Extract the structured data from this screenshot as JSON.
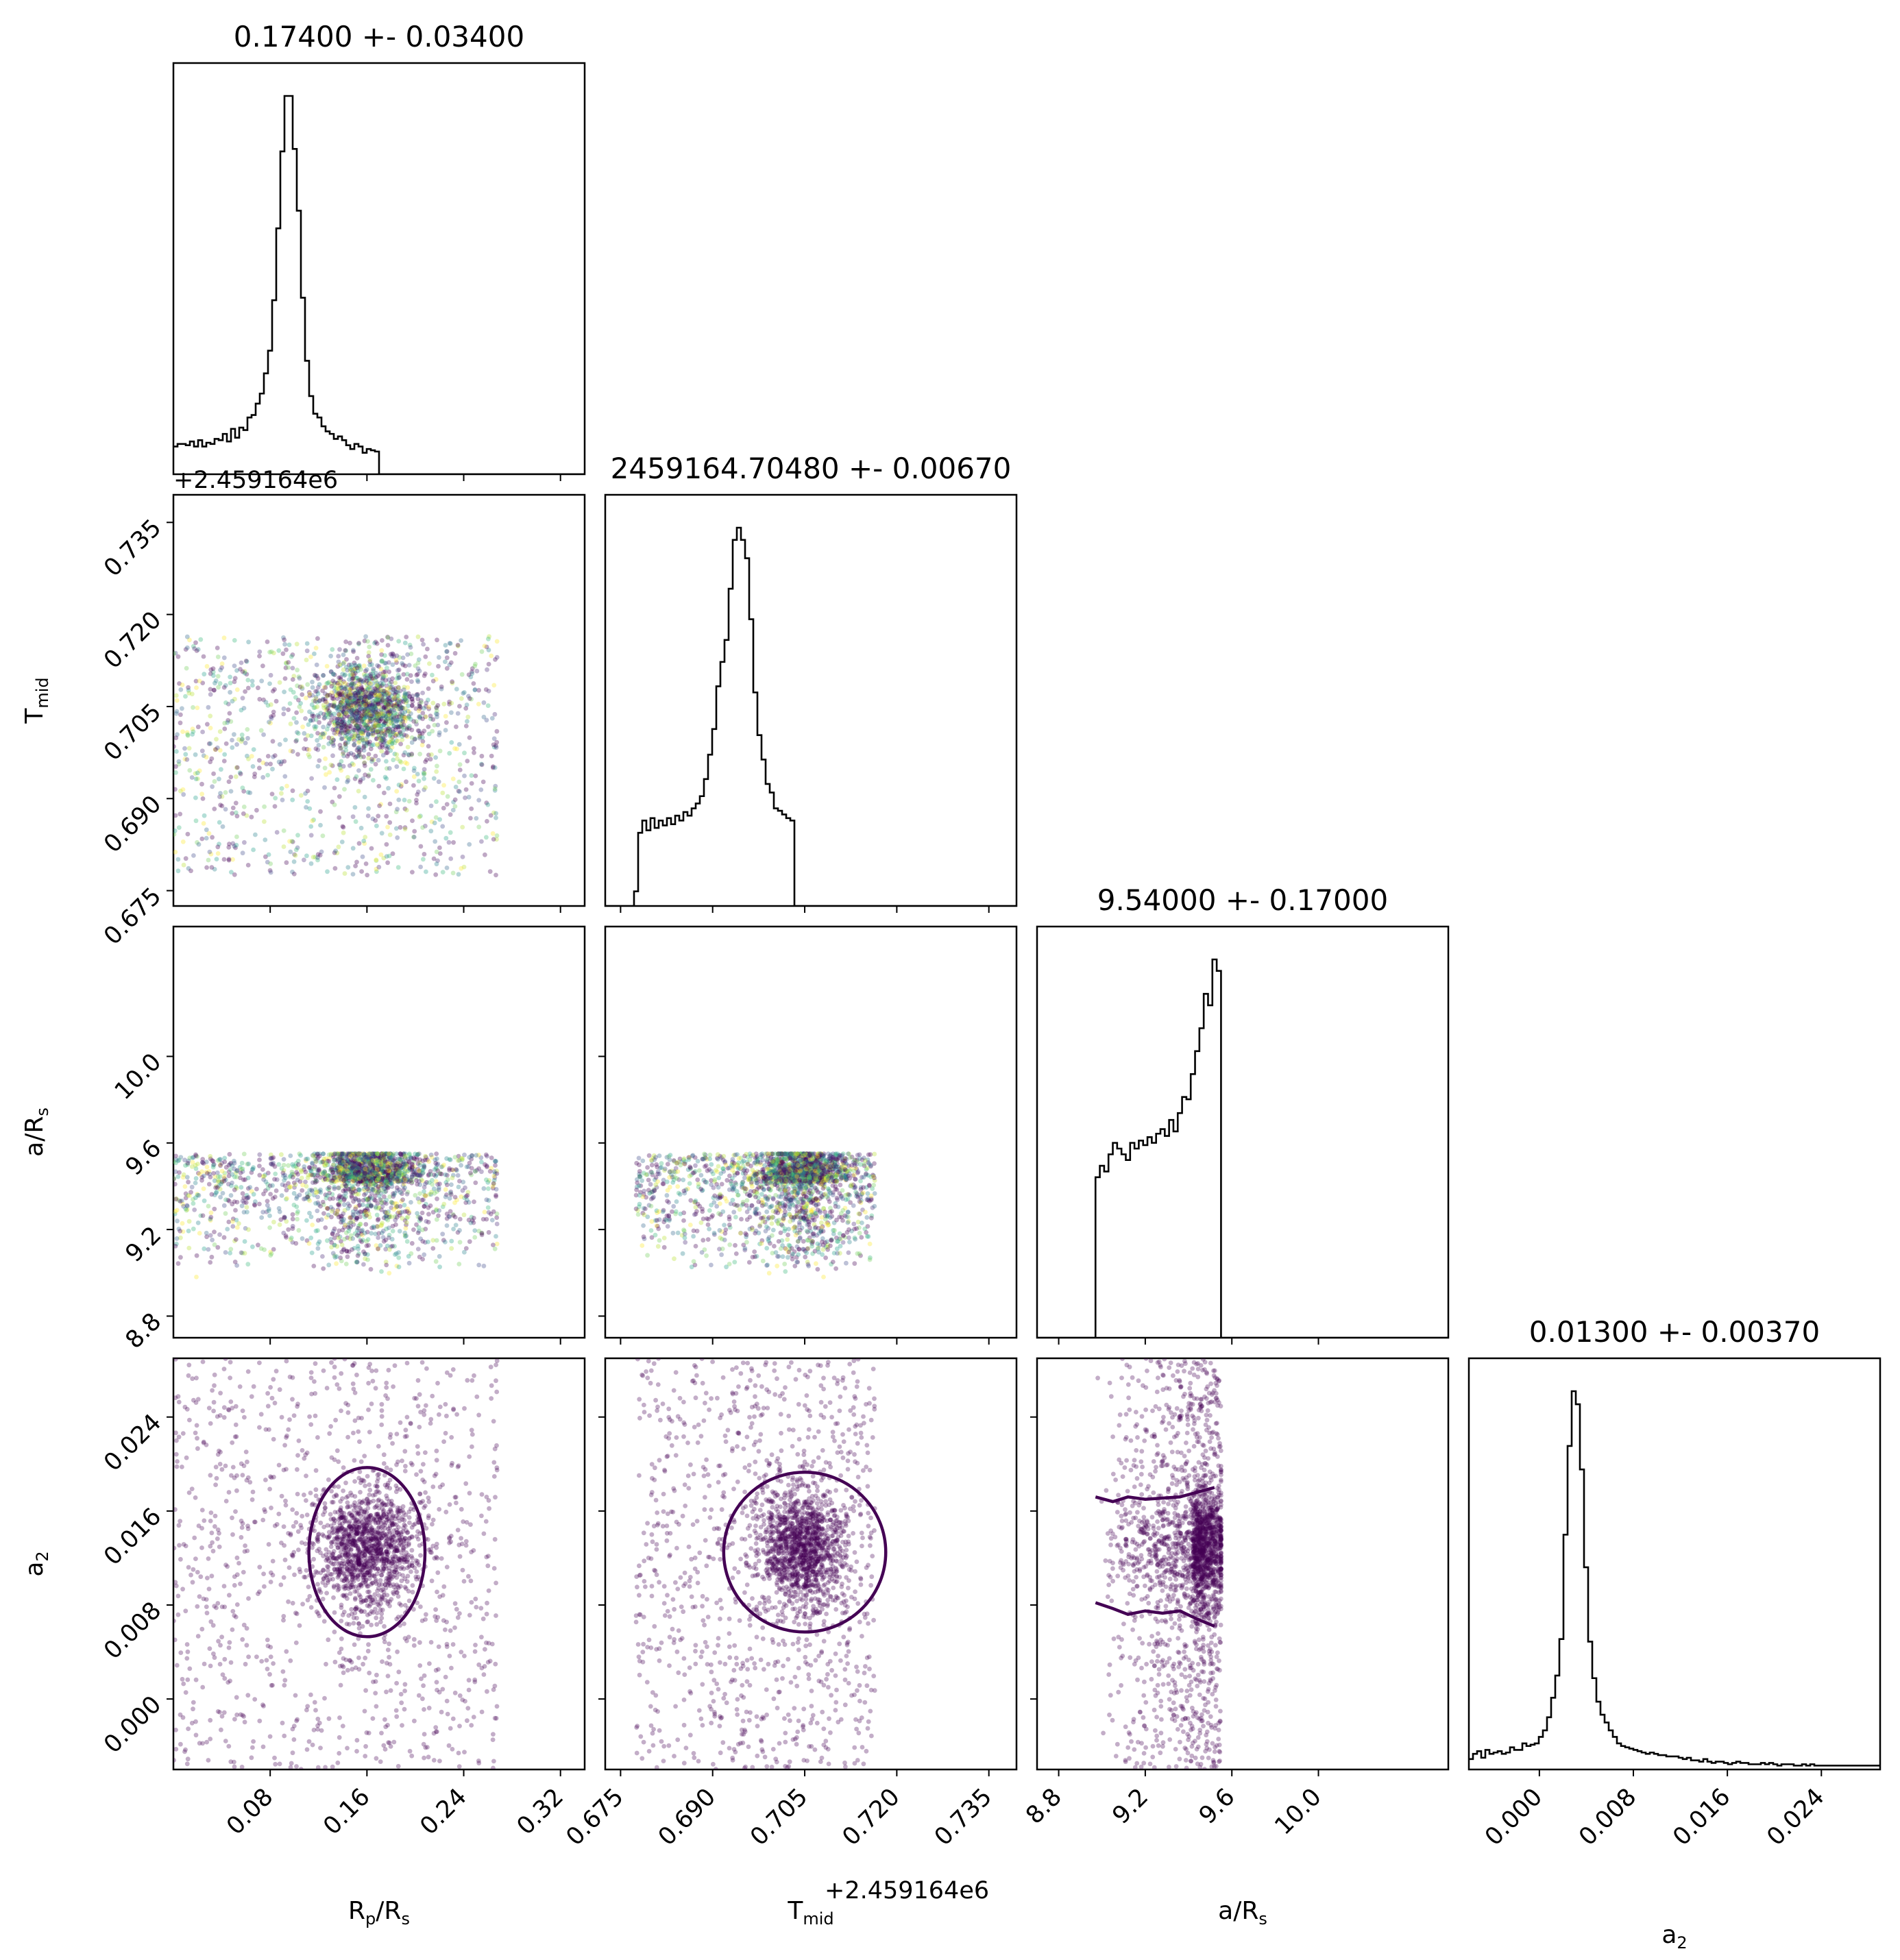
{
  "chart_data": {
    "type": "corner",
    "params": [
      "R_p/R_s",
      "T_mid",
      "a/R_s",
      "a_2"
    ],
    "axis_labels": [
      "R",
      "T",
      "a/R",
      "a"
    ],
    "axis_label_subscripts": [
      "p",
      "mid",
      "s",
      "2"
    ],
    "axis_label_tail": [
      "/R",
      "",
      "",
      ""
    ],
    "axis_label_tail_subscripts": [
      "s",
      "",
      "",
      ""
    ],
    "panel_titles": [
      "0.17400 +- 0.03400",
      "2459164.70480 +- 0.00670",
      "9.54000 +- 0.17000",
      "0.01300 +- 0.00370"
    ],
    "offset_labels": {
      "tmid_y": "+2.459164e6",
      "tmid_x": "+2.459164e6"
    },
    "ranges": [
      [
        0.0,
        0.34
      ],
      [
        0.6725,
        0.7395
      ],
      [
        8.7,
        10.6
      ],
      [
        -0.006,
        0.029
      ]
    ],
    "ticks": [
      {
        "values": [
          0.08,
          0.16,
          0.24,
          0.32
        ],
        "labels": [
          "0.08",
          "0.16",
          "0.24",
          "0.32"
        ]
      },
      {
        "values": [
          0.675,
          0.69,
          0.705,
          0.72,
          0.735
        ],
        "labels": [
          "0.675",
          "0.690",
          "0.705",
          "0.720",
          "0.735"
        ]
      },
      {
        "values": [
          8.8,
          9.2,
          9.6,
          10.0
        ],
        "labels": [
          "8.8",
          "9.2",
          "9.6",
          "10.0"
        ]
      },
      {
        "values": [
          0.0,
          0.008,
          0.016,
          0.024
        ],
        "labels": [
          "0.000",
          "0.008",
          "0.016",
          "0.024"
        ]
      }
    ],
    "histograms": [
      {
        "bin_start": 0.0,
        "bin_width": 0.0034,
        "counts": [
          22,
          24,
          24,
          23,
          26,
          22,
          27,
          22,
          25,
          24,
          28,
          27,
          32,
          26,
          36,
          29,
          37,
          35,
          45,
          47,
          56,
          64,
          80,
          98,
          138,
          195,
          256,
          300,
          300,
          258,
          209,
          140,
          90,
          62,
          48,
          45,
          38,
          34,
          32,
          28,
          30,
          27,
          23,
          20,
          24,
          22,
          17,
          20,
          19,
          18,
          0,
          0,
          0,
          0,
          0,
          0,
          0,
          0,
          0,
          0,
          0,
          0,
          0,
          0,
          0,
          0,
          0,
          0,
          0,
          0,
          0,
          0,
          0,
          0,
          0,
          0,
          0,
          0,
          0,
          0,
          0,
          0,
          0,
          0,
          0,
          0,
          0,
          0,
          0,
          0,
          0,
          0,
          0,
          0,
          0,
          0,
          0,
          0,
          0,
          0
        ]
      },
      {
        "bin_start": 0.6725,
        "bin_width": 0.00067,
        "counts": [
          0,
          0,
          0,
          0,
          0,
          0,
          0,
          12,
          60,
          70,
          62,
          72,
          64,
          70,
          66,
          72,
          67,
          74,
          70,
          77,
          74,
          80,
          84,
          90,
          104,
          124,
          145,
          180,
          200,
          218,
          260,
          300,
          310,
          300,
          285,
          235,
          175,
          140,
          120,
          100,
          93,
          80,
          78,
          75,
          72,
          70,
          0,
          0,
          0,
          0,
          0,
          0,
          0,
          0,
          0,
          0,
          0,
          0,
          0,
          0,
          0,
          0,
          0,
          0,
          0,
          0,
          0,
          0,
          0,
          0,
          0,
          0,
          0,
          0,
          0,
          0,
          0,
          0,
          0,
          0,
          0,
          0,
          0,
          0,
          0,
          0,
          0,
          0,
          0,
          0,
          0,
          0,
          0,
          0,
          0,
          0,
          0,
          0,
          0,
          0
        ]
      },
      {
        "bin_start": 8.7,
        "bin_width": 0.019,
        "counts": [
          0,
          0,
          0,
          0,
          0,
          0,
          0,
          0,
          0,
          0,
          0,
          0,
          0,
          0,
          0,
          0,
          0,
          0,
          0,
          0,
          0,
          0,
          0,
          0,
          0,
          0,
          0,
          0,
          0,
          0,
          0,
          0,
          0,
          0,
          0,
          0,
          0,
          0,
          0,
          0,
          0,
          0,
          0,
          0,
          0,
          0,
          0,
          0,
          0,
          0
        ]
      },
      {
        "bin_start": -0.006,
        "bin_width": 0.00035,
        "counts": [
          8,
          12,
          14,
          9,
          15,
          12,
          13,
          14,
          12,
          13,
          17,
          15,
          15,
          20,
          18,
          19,
          20,
          25,
          30,
          40,
          55,
          72,
          100,
          180,
          248,
          290,
          280,
          230,
          155,
          98,
          70,
          52,
          42,
          36,
          30,
          25,
          20,
          18,
          17,
          16,
          15,
          14,
          13,
          12,
          13,
          12,
          11,
          11,
          10,
          10,
          10,
          9,
          8,
          9,
          7,
          7,
          6,
          8,
          6,
          5,
          6,
          6,
          5,
          4,
          5,
          6,
          5,
          5,
          4,
          4,
          4,
          5,
          4,
          5,
          4,
          3,
          4,
          4,
          4,
          3,
          3,
          4,
          3,
          4,
          3,
          3,
          3,
          3,
          3,
          3,
          3,
          3,
          3,
          3,
          3,
          3,
          3,
          3,
          3,
          3
        ]
      }
    ],
    "arhist_summary": "a/R_s marginal: flat plateau from 8.97 to 9.52 rising toward 9.54 then zero beyond 9.55",
    "arhist_counts": [
      0,
      0,
      0,
      0,
      0,
      0,
      0,
      0,
      0,
      0,
      0,
      0,
      0,
      0,
      0,
      0,
      0,
      0,
      0,
      0,
      0,
      0,
      0,
      0,
      0,
      0,
      0,
      0,
      0,
      0,
      0,
      0,
      0,
      0,
      0,
      0,
      0,
      0,
      0,
      0,
      0,
      0,
      0,
      0,
      0,
      0,
      0,
      0,
      0,
      0,
      0,
      0,
      0,
      0,
      0,
      0,
      0,
      0,
      0,
      0,
      0,
      0,
      0,
      0,
      0,
      0,
      0,
      0,
      0,
      0,
      0,
      0,
      0,
      0,
      0,
      0,
      0,
      0,
      0,
      0,
      0,
      0,
      0,
      0,
      0,
      0,
      0,
      0,
      0,
      0,
      0,
      0,
      0,
      0,
      0,
      0,
      0,
      0,
      0,
      0
    ],
    "a_r_bins": {
      "edges": [
        8.97,
        8.99,
        9.01,
        9.03,
        9.05,
        9.07,
        9.09,
        9.11,
        9.13,
        9.15,
        9.17,
        9.19,
        9.21,
        9.23,
        9.25,
        9.27,
        9.29,
        9.31,
        9.33,
        9.35,
        9.37,
        9.39,
        9.41,
        9.43,
        9.45,
        9.47,
        9.49,
        9.51,
        9.53,
        9.55
      ],
      "counts": [
        140,
        150,
        145,
        160,
        170,
        165,
        160,
        155,
        170,
        165,
        172,
        168,
        175,
        170,
        178,
        182,
        176,
        190,
        180,
        196,
        210,
        208,
        230,
        250,
        270,
        300,
        290,
        330,
        320
      ]
    },
    "scatter": {
      "points_per_panel": 2200,
      "colormap": "viridis",
      "dominant_color": "#440154",
      "point_alpha": 0.28,
      "bounds": {
        "rp": [
          0.0,
          0.268
        ],
        "tmid": [
          0.6775,
          0.7165
        ],
        "ar": [
          8.97,
          9.55
        ],
        "a2": [
          -0.006,
          0.029
        ]
      },
      "cluster_centers": {
        "rp": 0.16,
        "tmid": 0.7045,
        "ar": 9.42,
        "a2": 0.0128
      },
      "cluster_sigmas": {
        "rp": 0.022,
        "tmid": 0.0035,
        "ar": 0.12,
        "a2": 0.0028
      }
    },
    "contours": [
      {
        "panel": "a2_vs_rp",
        "cx": 0.16,
        "cy": 0.0125,
        "rx": 0.048,
        "ry": 0.0072
      },
      {
        "panel": "a2_vs_tmid",
        "cx": 0.705,
        "cy": 0.0125,
        "rx": 0.0132,
        "ry": 0.0068
      },
      {
        "panel": "a2_vs_ar",
        "upper": [
          [
            8.97,
            0.0172
          ],
          [
            9.05,
            0.0168
          ],
          [
            9.12,
            0.0172
          ],
          [
            9.2,
            0.017
          ],
          [
            9.28,
            0.0171
          ],
          [
            9.36,
            0.0172
          ],
          [
            9.44,
            0.0176
          ],
          [
            9.52,
            0.018
          ]
        ],
        "lower": [
          [
            8.97,
            0.0082
          ],
          [
            9.05,
            0.0077
          ],
          [
            9.12,
            0.0072
          ],
          [
            9.2,
            0.0075
          ],
          [
            9.28,
            0.0073
          ],
          [
            9.36,
            0.0075
          ],
          [
            9.44,
            0.0068
          ],
          [
            9.52,
            0.0062
          ]
        ]
      }
    ],
    "contour_color": "#440154"
  }
}
